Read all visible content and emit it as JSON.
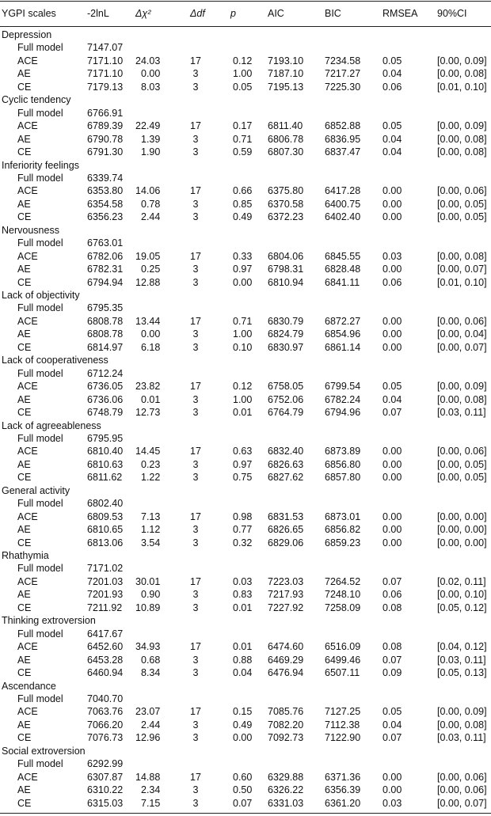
{
  "table": {
    "header": [
      "YGPI scales",
      "-2lnL",
      "Δχ²",
      "Δdf",
      "p",
      "AIC",
      "BIC",
      "RMSEA",
      "90%CI"
    ],
    "groups": [
      {
        "name": "Depression",
        "rows": [
          [
            "Full model",
            "7147.07"
          ],
          [
            "ACE",
            "7171.10",
            "24.03",
            "17",
            "0.12",
            "7193.10",
            "7234.58",
            "0.05",
            "[0.00, 0.09]"
          ],
          [
            "AE",
            "7171.10",
            "0.00",
            "3",
            "1.00",
            "7187.10",
            "7217.27",
            "0.04",
            "[0.00, 0.08]"
          ],
          [
            "CE",
            "7179.13",
            "8.03",
            "3",
            "0.05",
            "7195.13",
            "7225.30",
            "0.06",
            "[0.01, 0.10]"
          ]
        ]
      },
      {
        "name": "Cyclic tendency",
        "rows": [
          [
            "Full model",
            "6766.91"
          ],
          [
            "ACE",
            "6789.39",
            "22.49",
            "17",
            "0.17",
            "6811.40",
            "6852.88",
            "0.05",
            "[0.00, 0.09]"
          ],
          [
            "AE",
            "6790.78",
            "1.39",
            "3",
            "0.71",
            "6806.78",
            "6836.95",
            "0.04",
            "[0.00, 0.08]"
          ],
          [
            "CE",
            "6791.30",
            "1.90",
            "3",
            "0.59",
            "6807.30",
            "6837.47",
            "0.04",
            "[0.00, 0.08]"
          ]
        ]
      },
      {
        "name": "Inferiority feelings",
        "rows": [
          [
            "Full model",
            "6339.74"
          ],
          [
            "ACE",
            "6353.80",
            "14.06",
            "17",
            "0.66",
            "6375.80",
            "6417.28",
            "0.00",
            "[0.00, 0.06]"
          ],
          [
            "AE",
            "6354.58",
            "0.78",
            "3",
            "0.85",
            "6370.58",
            "6400.75",
            "0.00",
            "[0.00, 0.05]"
          ],
          [
            "CE",
            "6356.23",
            "2.44",
            "3",
            "0.49",
            "6372.23",
            "6402.40",
            "0.00",
            "[0.00, 0.05]"
          ]
        ]
      },
      {
        "name": "Nervousness",
        "rows": [
          [
            "Full model",
            "6763.01"
          ],
          [
            "ACE",
            "6782.06",
            "19.05",
            "17",
            "0.33",
            "6804.06",
            "6845.55",
            "0.03",
            "[0.00, 0.08]"
          ],
          [
            "AE",
            "6782.31",
            "0.25",
            "3",
            "0.97",
            "6798.31",
            "6828.48",
            "0.00",
            "[0.00, 0.07]"
          ],
          [
            "CE",
            "6794.94",
            "12.88",
            "3",
            "0.00",
            "6810.94",
            "6841.11",
            "0.06",
            "[0.01, 0.10]"
          ]
        ]
      },
      {
        "name": "Lack of objectivity",
        "rows": [
          [
            "Full model",
            "6795.35"
          ],
          [
            "ACE",
            "6808.78",
            "13.44",
            "17",
            "0.71",
            "6830.79",
            "6872.27",
            "0.00",
            "[0.00, 0.06]"
          ],
          [
            "AE",
            "6808.78",
            "0.00",
            "3",
            "1.00",
            "6824.79",
            "6854.96",
            "0.00",
            "[0.00, 0.04]"
          ],
          [
            "CE",
            "6814.97",
            "6.18",
            "3",
            "0.10",
            "6830.97",
            "6861.14",
            "0.00",
            "[0.00, 0.07]"
          ]
        ]
      },
      {
        "name": "Lack of cooperativeness",
        "rows": [
          [
            "Full model",
            "6712.24"
          ],
          [
            "ACE",
            "6736.05",
            "23.82",
            "17",
            "0.12",
            "6758.05",
            "6799.54",
            "0.05",
            "[0.00, 0.09]"
          ],
          [
            "AE",
            "6736.06",
            "0.01",
            "3",
            "1.00",
            "6752.06",
            "6782.24",
            "0.04",
            "[0.00, 0.08]"
          ],
          [
            "CE",
            "6748.79",
            "12.73",
            "3",
            "0.01",
            "6764.79",
            "6794.96",
            "0.07",
            "[0.03, 0.11]"
          ]
        ]
      },
      {
        "name": "Lack of agreeableness",
        "rows": [
          [
            "Full model",
            "6795.95"
          ],
          [
            "ACE",
            "6810.40",
            "14.45",
            "17",
            "0.63",
            "6832.40",
            "6873.89",
            "0.00",
            "[0.00, 0.06]"
          ],
          [
            "AE",
            "6810.63",
            "0.23",
            "3",
            "0.97",
            "6826.63",
            "6856.80",
            "0.00",
            "[0.00, 0.05]"
          ],
          [
            "CE",
            "6811.62",
            "1.22",
            "3",
            "0.75",
            "6827.62",
            "6857.80",
            "0.00",
            "[0.00, 0.05]"
          ]
        ]
      },
      {
        "name": "General activity",
        "rows": [
          [
            "Full model",
            "6802.40"
          ],
          [
            "ACE",
            "6809.53",
            "7.13",
            "17",
            "0.98",
            "6831.53",
            "6873.01",
            "0.00",
            "[0.00, 0.00]"
          ],
          [
            "AE",
            "6810.65",
            "1.12",
            "3",
            "0.77",
            "6826.65",
            "6856.82",
            "0.00",
            "[0.00, 0.00]"
          ],
          [
            "CE",
            "6813.06",
            "3.54",
            "3",
            "0.32",
            "6829.06",
            "6859.23",
            "0.00",
            "[0.00, 0.00]"
          ]
        ]
      },
      {
        "name": "Rhathymia",
        "rows": [
          [
            "Full model",
            "7171.02"
          ],
          [
            "ACE",
            "7201.03",
            "30.01",
            "17",
            "0.03",
            "7223.03",
            "7264.52",
            "0.07",
            "[0.02, 0.11]"
          ],
          [
            "AE",
            "7201.93",
            "0.90",
            "3",
            "0.83",
            "7217.93",
            "7248.10",
            "0.06",
            "[0.00, 0.10]"
          ],
          [
            "CE",
            "7211.92",
            "10.89",
            "3",
            "0.01",
            "7227.92",
            "7258.09",
            "0.08",
            "[0.05, 0.12]"
          ]
        ]
      },
      {
        "name": "Thinking extroversion",
        "rows": [
          [
            "Full model",
            "6417.67"
          ],
          [
            "ACE",
            "6452.60",
            "34.93",
            "17",
            "0.01",
            "6474.60",
            "6516.09",
            "0.08",
            "[0.04, 0.12]"
          ],
          [
            "AE",
            "6453.28",
            "0.68",
            "3",
            "0.88",
            "6469.29",
            "6499.46",
            "0.07",
            "[0.03, 0.11]"
          ],
          [
            "CE",
            "6460.94",
            "8.34",
            "3",
            "0.04",
            "6476.94",
            "6507.11",
            "0.09",
            "[0.05, 0.13]"
          ]
        ]
      },
      {
        "name": "Ascendance",
        "rows": [
          [
            "Full model",
            "7040.70"
          ],
          [
            "ACE",
            "7063.76",
            "23.07",
            "17",
            "0.15",
            "7085.76",
            "7127.25",
            "0.05",
            "[0.00, 0.09]"
          ],
          [
            "AE",
            "7066.20",
            "2.44",
            "3",
            "0.49",
            "7082.20",
            "7112.38",
            "0.04",
            "[0.00, 0.08]"
          ],
          [
            "CE",
            "7076.73",
            "12.96",
            "3",
            "0.00",
            "7092.73",
            "7122.90",
            "0.07",
            "[0.03, 0.11]"
          ]
        ]
      },
      {
        "name": "Social extroversion",
        "rows": [
          [
            "Full model",
            "6292.99"
          ],
          [
            "ACE",
            "6307.87",
            "14.88",
            "17",
            "0.60",
            "6329.88",
            "6371.36",
            "0.00",
            "[0.00, 0.06]"
          ],
          [
            "AE",
            "6310.22",
            "2.34",
            "3",
            "0.50",
            "6326.22",
            "6356.39",
            "0.00",
            "[0.00, 0.06]"
          ],
          [
            "CE",
            "6315.03",
            "7.15",
            "3",
            "0.07",
            "6331.03",
            "6361.20",
            "0.03",
            "[0.00, 0.07]"
          ]
        ]
      }
    ]
  }
}
